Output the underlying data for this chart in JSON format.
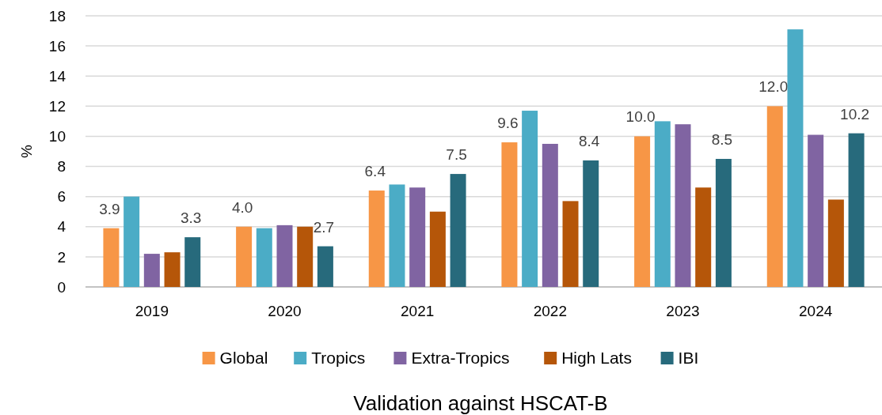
{
  "chart_data": {
    "type": "bar",
    "title": "Validation against HSCAT-B",
    "ylabel": "%",
    "categories": [
      "2019",
      "2020",
      "2021",
      "2022",
      "2023",
      "2024"
    ],
    "series": [
      {
        "name": "Global",
        "color": "#f79646",
        "values": [
          3.9,
          4.0,
          6.4,
          9.6,
          10.0,
          12.0
        ],
        "value_labels": [
          "3.9",
          "4.0",
          "6.4",
          "9.6",
          "10.0",
          "12.0"
        ]
      },
      {
        "name": "Tropics",
        "color": "#4bacc6",
        "values": [
          6.0,
          3.9,
          6.8,
          11.7,
          11.0,
          17.1
        ]
      },
      {
        "name": "Extra-Tropics",
        "color": "#8064a2",
        "values": [
          2.2,
          4.1,
          6.6,
          9.5,
          10.8,
          10.1
        ]
      },
      {
        "name": "High Lats",
        "color": "#b55609",
        "values": [
          2.3,
          4.0,
          5.0,
          5.7,
          6.6,
          5.8
        ]
      },
      {
        "name": "IBI",
        "color": "#276a7c",
        "values": [
          3.3,
          2.7,
          7.5,
          8.4,
          8.5,
          10.2
        ],
        "value_labels": [
          "3.3",
          "2.7",
          "7.5",
          "8.4",
          "8.5",
          "10.2"
        ]
      }
    ],
    "ylim": [
      0,
      18
    ],
    "yticks": [
      0,
      2,
      4,
      6,
      8,
      10,
      12,
      14,
      16,
      18
    ],
    "grid": "y",
    "legend": "bottom"
  }
}
